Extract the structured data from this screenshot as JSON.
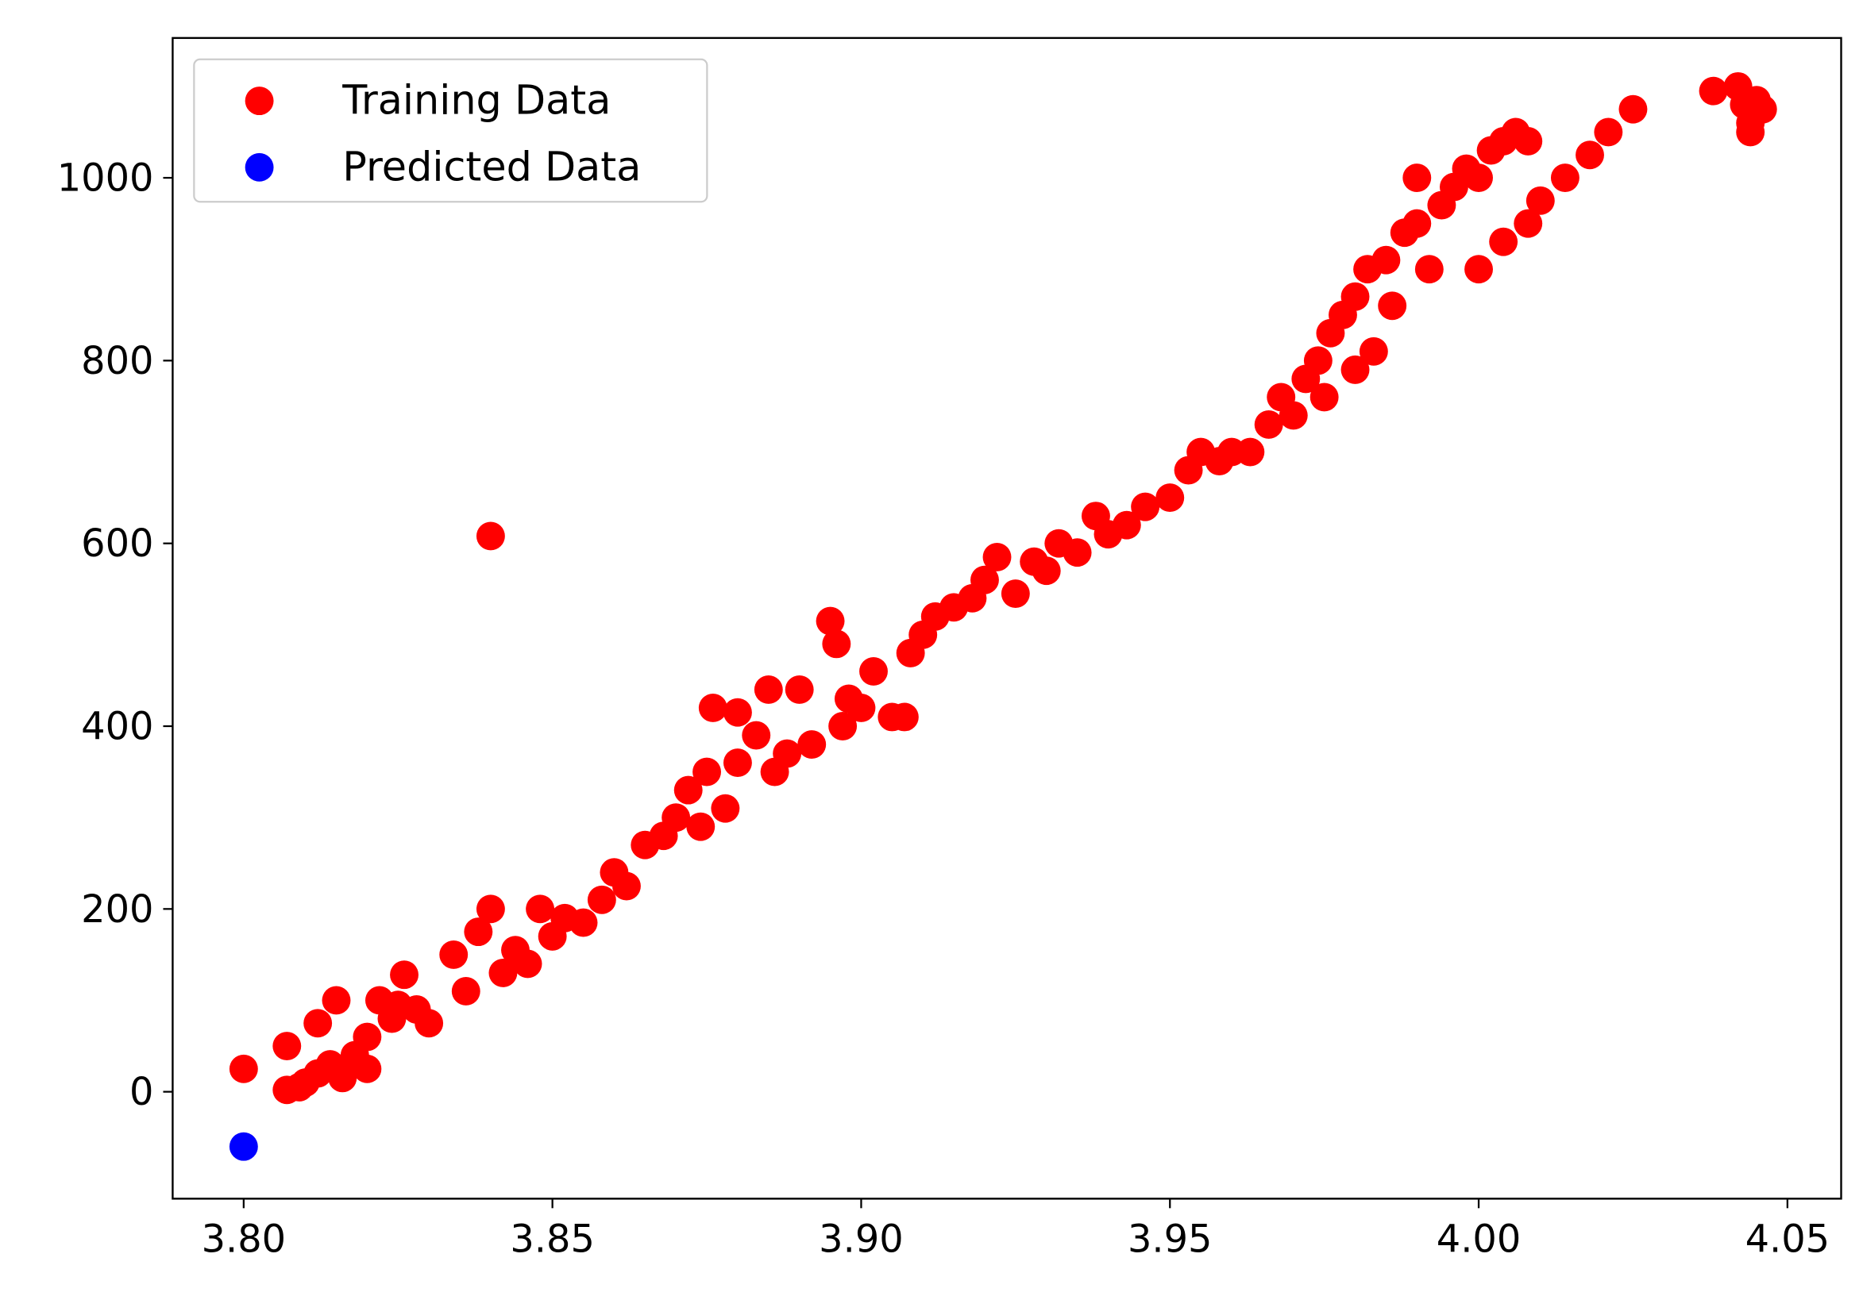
{
  "chart_data": {
    "type": "scatter",
    "xlim": [
      3.7885,
      4.0587
    ],
    "ylim": [
      -117,
      1153
    ],
    "xticks": [
      {
        "value": 3.8,
        "label": "3.80"
      },
      3.85,
      {
        "value": 3.9,
        "label": "3.90"
      },
      3.95,
      {
        "value": 4.0,
        "label": "4.00"
      },
      4.05
    ],
    "yticks": [
      0,
      200,
      400,
      600,
      800,
      1000
    ],
    "grid": false,
    "legend": "upper left",
    "series": [
      {
        "name": "Training Data",
        "color": "#ff0000",
        "x": [
          3.8,
          3.807,
          3.807,
          3.809,
          3.81,
          3.812,
          3.812,
          3.814,
          3.815,
          3.816,
          3.818,
          3.82,
          3.82,
          3.822,
          3.824,
          3.825,
          3.826,
          3.828,
          3.83,
          3.834,
          3.836,
          3.838,
          3.84,
          3.84,
          3.842,
          3.844,
          3.846,
          3.848,
          3.85,
          3.852,
          3.855,
          3.858,
          3.86,
          3.862,
          3.865,
          3.868,
          3.87,
          3.872,
          3.874,
          3.875,
          3.876,
          3.878,
          3.88,
          3.88,
          3.883,
          3.885,
          3.886,
          3.888,
          3.89,
          3.892,
          3.895,
          3.896,
          3.897,
          3.898,
          3.9,
          3.902,
          3.905,
          3.907,
          3.908,
          3.91,
          3.912,
          3.915,
          3.918,
          3.92,
          3.922,
          3.925,
          3.928,
          3.93,
          3.932,
          3.935,
          3.938,
          3.94,
          3.943,
          3.946,
          3.95,
          3.953,
          3.955,
          3.958,
          3.96,
          3.963,
          3.966,
          3.968,
          3.97,
          3.972,
          3.974,
          3.975,
          3.976,
          3.978,
          3.98,
          3.98,
          3.982,
          3.983,
          3.985,
          3.986,
          3.988,
          3.99,
          3.99,
          3.992,
          3.994,
          3.996,
          3.998,
          4.0,
          4.0,
          4.002,
          4.004,
          4.004,
          4.006,
          4.008,
          4.008,
          4.01,
          4.014,
          4.018,
          4.021,
          4.025,
          4.038,
          4.042,
          4.043,
          4.044,
          4.045,
          4.046,
          4.044
        ],
        "values": [
          25,
          50,
          2,
          5,
          10,
          20,
          75,
          30,
          100,
          15,
          40,
          60,
          25,
          100,
          80,
          95,
          128,
          90,
          75,
          150,
          110,
          175,
          200,
          608,
          130,
          155,
          140,
          200,
          170,
          190,
          185,
          210,
          240,
          225,
          270,
          280,
          300,
          330,
          290,
          350,
          420,
          310,
          360,
          415,
          390,
          440,
          350,
          370,
          440,
          380,
          515,
          490,
          400,
          430,
          420,
          460,
          410,
          410,
          480,
          500,
          520,
          530,
          540,
          560,
          585,
          545,
          580,
          570,
          600,
          590,
          630,
          610,
          620,
          640,
          650,
          680,
          700,
          690,
          700,
          700,
          730,
          760,
          740,
          780,
          800,
          760,
          830,
          850,
          870,
          790,
          900,
          810,
          910,
          860,
          940,
          950,
          1000,
          900,
          970,
          990,
          1010,
          1000,
          900,
          1030,
          1040,
          930,
          1050,
          1040,
          950,
          975,
          1000,
          1025,
          1050,
          1075,
          1095,
          1100,
          1080,
          1060,
          1085,
          1075,
          1050
        ]
      },
      {
        "name": "Predicted Data",
        "color": "#0000ff",
        "x": [
          3.8
        ],
        "values": [
          -60
        ]
      }
    ]
  }
}
